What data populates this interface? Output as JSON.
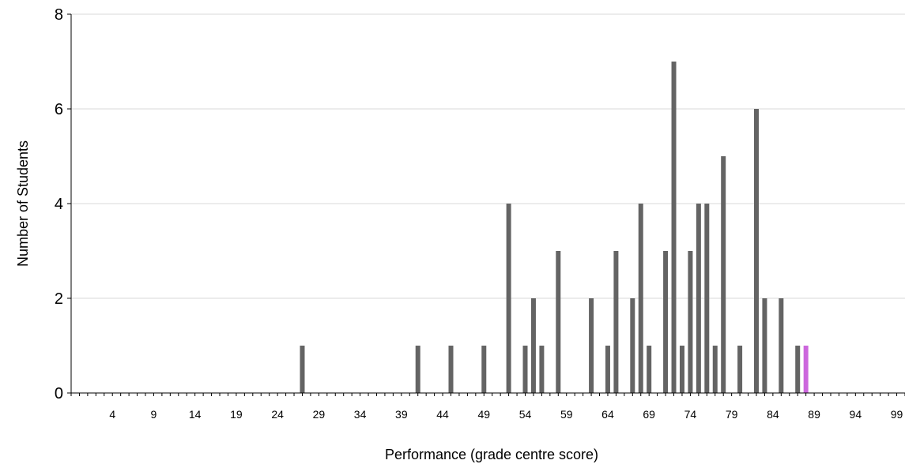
{
  "chart_data": {
    "type": "bar",
    "title": "",
    "xlabel": "Performance (grade centre score)",
    "ylabel": "Number of Students",
    "xlim": [
      -1,
      100
    ],
    "ylim": [
      0,
      8
    ],
    "yticks": [
      0,
      2,
      4,
      6,
      8
    ],
    "xticks": [
      4,
      9,
      14,
      19,
      24,
      29,
      34,
      39,
      44,
      49,
      54,
      59,
      64,
      69,
      74,
      79,
      84,
      89,
      94,
      99
    ],
    "grid": "horizontal",
    "legend": "none",
    "bar_color": "#646464",
    "highlight_color": "#cc66dd",
    "bars": [
      {
        "x": 27,
        "y": 1
      },
      {
        "x": 41,
        "y": 1
      },
      {
        "x": 45,
        "y": 1
      },
      {
        "x": 49,
        "y": 1
      },
      {
        "x": 52,
        "y": 4
      },
      {
        "x": 54,
        "y": 1
      },
      {
        "x": 55,
        "y": 2
      },
      {
        "x": 56,
        "y": 1
      },
      {
        "x": 58,
        "y": 3
      },
      {
        "x": 62,
        "y": 2
      },
      {
        "x": 64,
        "y": 1
      },
      {
        "x": 65,
        "y": 3
      },
      {
        "x": 67,
        "y": 2
      },
      {
        "x": 68,
        "y": 4
      },
      {
        "x": 69,
        "y": 1
      },
      {
        "x": 71,
        "y": 3
      },
      {
        "x": 72,
        "y": 7
      },
      {
        "x": 73,
        "y": 1
      },
      {
        "x": 74,
        "y": 3
      },
      {
        "x": 75,
        "y": 4
      },
      {
        "x": 76,
        "y": 4
      },
      {
        "x": 77,
        "y": 1
      },
      {
        "x": 78,
        "y": 5
      },
      {
        "x": 80,
        "y": 1
      },
      {
        "x": 82,
        "y": 6
      },
      {
        "x": 83,
        "y": 2
      },
      {
        "x": 85,
        "y": 2
      },
      {
        "x": 87,
        "y": 1
      },
      {
        "x": 88,
        "y": 1,
        "highlight": true
      }
    ]
  }
}
